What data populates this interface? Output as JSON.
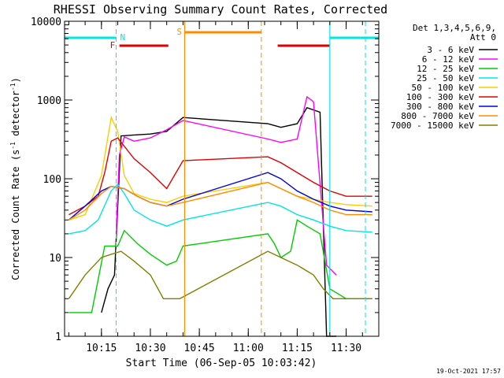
{
  "chart_data": {
    "type": "line",
    "title": "RHESSI Observing Summary Count Rates, Corrected",
    "xlabel": "Start Time (06-Sep-05 10:03:42)",
    "ylabel": "Corrected Count Rate (s⁻¹ detector⁻¹)",
    "ylabel_base": "Corrected Count Rate (s",
    "ylabel_mid": " detector",
    "ylabel_end": ")",
    "ylabel_exp": "-1",
    "yscale": "log",
    "ylim": [
      1,
      10000
    ],
    "xlim": [
      "10:03:42",
      "11:40:00"
    ],
    "x_ticks": [
      "10:15",
      "10:30",
      "10:45",
      "11:00",
      "11:15",
      "11:30"
    ],
    "y_ticks": [
      "1",
      "10",
      "100",
      "1000",
      "10000"
    ],
    "legend_header": [
      "Det 1,3,4,5,6,9,",
      "Att 0"
    ],
    "timestamp": "19-Oct-2021 17:57",
    "flags": {
      "fast_rate": {
        "label": "F",
        "color": "#e00000",
        "intervals": [
          [
            "10:20:30",
            "10:35:30"
          ],
          [
            "11:09:00",
            "11:25:00"
          ]
        ]
      },
      "night": {
        "label": "N",
        "color": "#00e5e5",
        "intervals": [
          [
            "10:03:42",
            "10:19:30"
          ],
          [
            "11:25:00",
            "11:40:00"
          ]
        ]
      },
      "saa": {
        "label": "S",
        "color": "#ff8c00",
        "intervals": [
          [
            "10:40:30",
            "11:04:00"
          ]
        ]
      }
    },
    "series": [
      {
        "name": "3 - 6 keV",
        "color": "#000000",
        "points": [
          [
            "10:15:00",
            2
          ],
          [
            "10:17:00",
            4
          ],
          [
            "10:19:00",
            6
          ],
          [
            "10:21:00",
            350
          ],
          [
            "10:25:00",
            360
          ],
          [
            "10:30:00",
            370
          ],
          [
            "10:35:00",
            400
          ],
          [
            "10:40:00",
            600
          ],
          [
            "11:06:00",
            500
          ],
          [
            "11:10:00",
            450
          ],
          [
            "11:15:00",
            500
          ],
          [
            "11:18:00",
            800
          ],
          [
            "11:22:00",
            700
          ],
          [
            "11:24:00",
            1
          ],
          [
            "11:27:00",
            1
          ]
        ]
      },
      {
        "name": "6 - 12 keV",
        "color": "#ff00ff",
        "points": [
          [
            "10:19:30",
            20
          ],
          [
            "10:20:30",
            200
          ],
          [
            "10:22:00",
            340
          ],
          [
            "10:25:00",
            300
          ],
          [
            "10:30:00",
            330
          ],
          [
            "10:35:00",
            420
          ],
          [
            "10:40:00",
            550
          ],
          [
            "11:06:00",
            320
          ],
          [
            "11:10:00",
            290
          ],
          [
            "11:15:00",
            320
          ],
          [
            "11:18:00",
            1100
          ],
          [
            "11:20:00",
            950
          ],
          [
            "11:24:00",
            8
          ],
          [
            "11:27:00",
            6
          ]
        ]
      },
      {
        "name": "12 - 25 keV",
        "color": "#00cc00",
        "points": [
          [
            "10:05:00",
            2
          ],
          [
            "10:08:00",
            2
          ],
          [
            "10:12:00",
            2
          ],
          [
            "10:16:00",
            14
          ],
          [
            "10:20:00",
            14
          ],
          [
            "10:22:00",
            22
          ],
          [
            "10:26:00",
            15
          ],
          [
            "10:30:00",
            11
          ],
          [
            "10:35:00",
            8
          ],
          [
            "10:38:00",
            9
          ],
          [
            "10:40:00",
            14
          ],
          [
            "11:06:00",
            20
          ],
          [
            "11:08:00",
            15
          ],
          [
            "11:10:00",
            10
          ],
          [
            "11:13:00",
            12
          ],
          [
            "11:15:00",
            30
          ],
          [
            "11:18:00",
            25
          ],
          [
            "11:22:00",
            20
          ],
          [
            "11:25:00",
            4
          ],
          [
            "11:30:00",
            3
          ],
          [
            "11:38:00",
            3
          ]
        ]
      },
      {
        "name": "25 - 50 keV",
        "color": "#00e5e5",
        "points": [
          [
            "10:05:00",
            20
          ],
          [
            "10:10:00",
            22
          ],
          [
            "10:14:00",
            30
          ],
          [
            "10:18:00",
            70
          ],
          [
            "10:20:00",
            85
          ],
          [
            "10:22:00",
            65
          ],
          [
            "10:25:00",
            40
          ],
          [
            "10:30:00",
            30
          ],
          [
            "10:35:00",
            25
          ],
          [
            "10:40:00",
            30
          ],
          [
            "11:06:00",
            50
          ],
          [
            "11:10:00",
            45
          ],
          [
            "11:15:00",
            35
          ],
          [
            "11:20:00",
            30
          ],
          [
            "11:25:00",
            25
          ],
          [
            "11:30:00",
            22
          ],
          [
            "11:38:00",
            21
          ]
        ]
      },
      {
        "name": "50 - 100 keV",
        "color": "#ffcc00",
        "points": [
          [
            "10:05:00",
            30
          ],
          [
            "10:10:00",
            35
          ],
          [
            "10:15:00",
            110
          ],
          [
            "10:18:00",
            600
          ],
          [
            "10:20:00",
            400
          ],
          [
            "10:22:00",
            110
          ],
          [
            "10:25:00",
            65
          ],
          [
            "10:30:00",
            55
          ],
          [
            "10:35:00",
            50
          ],
          [
            "10:40:00",
            60
          ],
          [
            "11:06:00",
            90
          ],
          [
            "11:10:00",
            75
          ],
          [
            "11:15:00",
            60
          ],
          [
            "11:20:00",
            55
          ],
          [
            "11:25:00",
            50
          ],
          [
            "11:30:00",
            47
          ],
          [
            "11:38:00",
            45
          ]
        ]
      },
      {
        "name": "100 - 300 keV",
        "color": "#e00000",
        "points": [
          [
            "10:05:00",
            35
          ],
          [
            "10:10:00",
            45
          ],
          [
            "10:14:00",
            60
          ],
          [
            "10:16:00",
            120
          ],
          [
            "10:18:00",
            300
          ],
          [
            "10:20:00",
            330
          ],
          [
            "10:25:00",
            180
          ],
          [
            "10:30:00",
            120
          ],
          [
            "10:35:00",
            75
          ],
          [
            "10:40:00",
            170
          ],
          [
            "11:06:00",
            190
          ],
          [
            "11:10:00",
            160
          ],
          [
            "11:15:00",
            120
          ],
          [
            "11:20:00",
            90
          ],
          [
            "11:25:00",
            70
          ],
          [
            "11:30:00",
            60
          ],
          [
            "11:38:00",
            60
          ]
        ]
      },
      {
        "name": "300 - 800 keV",
        "color": "#0000e0",
        "points": [
          [
            "10:05:00",
            30
          ],
          [
            "10:10:00",
            45
          ],
          [
            "10:15:00",
            70
          ],
          [
            "10:18:00",
            80
          ],
          [
            "10:22:00",
            75
          ],
          [
            "10:26:00",
            60
          ],
          [
            "10:30:00",
            50
          ],
          [
            "10:35:00",
            45
          ],
          [
            "10:40:00",
            55
          ],
          [
            "11:06:00",
            120
          ],
          [
            "11:10:00",
            100
          ],
          [
            "11:15:00",
            70
          ],
          [
            "11:20:00",
            55
          ],
          [
            "11:25:00",
            45
          ],
          [
            "11:30:00",
            40
          ],
          [
            "11:38:00",
            38
          ]
        ]
      },
      {
        "name": "800 - 7000 keV",
        "color": "#ff8c00",
        "points": [
          [
            "10:05:00",
            30
          ],
          [
            "10:10:00",
            40
          ],
          [
            "10:15:00",
            65
          ],
          [
            "10:18:00",
            80
          ],
          [
            "10:22:00",
            75
          ],
          [
            "10:26:00",
            60
          ],
          [
            "10:30:00",
            50
          ],
          [
            "10:35:00",
            45
          ],
          [
            "10:40:00",
            50
          ],
          [
            "11:06:00",
            90
          ],
          [
            "11:10:00",
            75
          ],
          [
            "11:15:00",
            60
          ],
          [
            "11:20:00",
            50
          ],
          [
            "11:25:00",
            40
          ],
          [
            "11:30:00",
            35
          ],
          [
            "11:38:00",
            35
          ]
        ]
      },
      {
        "name": "7000 - 15000 keV",
        "color": "#808000",
        "points": [
          [
            "10:05:00",
            3
          ],
          [
            "10:10:00",
            6
          ],
          [
            "10:15:00",
            10
          ],
          [
            "10:18:00",
            11
          ],
          [
            "10:21:00",
            12
          ],
          [
            "10:25:00",
            9
          ],
          [
            "10:30:00",
            6
          ],
          [
            "10:34:00",
            3
          ],
          [
            "10:39:00",
            3
          ],
          [
            "11:06:00",
            12
          ],
          [
            "11:10:00",
            10
          ],
          [
            "11:15:00",
            8
          ],
          [
            "11:20:00",
            6
          ],
          [
            "11:23:00",
            4
          ],
          [
            "11:26:00",
            3
          ],
          [
            "11:30:00",
            3
          ],
          [
            "11:38:00",
            3
          ]
        ]
      }
    ]
  }
}
